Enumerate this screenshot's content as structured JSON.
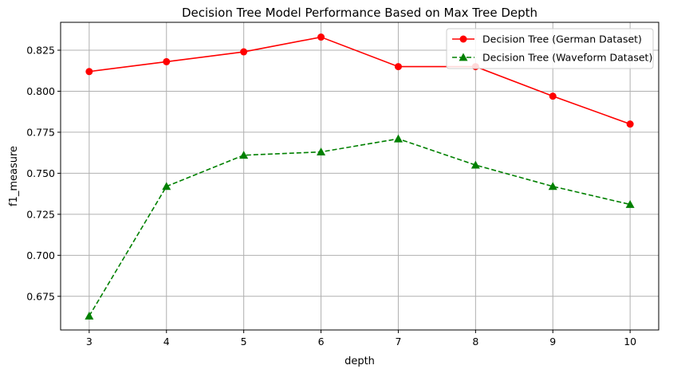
{
  "chart_data": {
    "type": "line",
    "title": "Decision Tree Model Performance Based on Max Tree Depth",
    "xlabel": "depth",
    "ylabel": "f1_measure",
    "x": [
      3,
      4,
      5,
      6,
      7,
      8,
      9,
      10
    ],
    "xlim": [
      2.63,
      10.37
    ],
    "ylim": [
      0.6545,
      0.842
    ],
    "xticks": [
      3,
      4,
      5,
      6,
      7,
      8,
      9,
      10
    ],
    "yticks": [
      0.675,
      0.7,
      0.725,
      0.75,
      0.775,
      0.8,
      0.825
    ],
    "ytick_labels": [
      "0.675",
      "0.700",
      "0.725",
      "0.750",
      "0.775",
      "0.800",
      "0.825"
    ],
    "grid": true,
    "legend_position": "top-right",
    "series": [
      {
        "name": "Decision Tree (German Dataset)",
        "values": [
          0.812,
          0.818,
          0.824,
          0.833,
          0.815,
          0.815,
          0.797,
          0.78
        ],
        "color": "#ff0000",
        "linestyle": "solid",
        "marker": "circle"
      },
      {
        "name": "Decision Tree (Waveform Dataset)",
        "values": [
          0.663,
          0.742,
          0.761,
          0.763,
          0.771,
          0.755,
          0.742,
          0.731
        ],
        "color": "#008000",
        "linestyle": "dashed",
        "marker": "triangle"
      }
    ]
  }
}
